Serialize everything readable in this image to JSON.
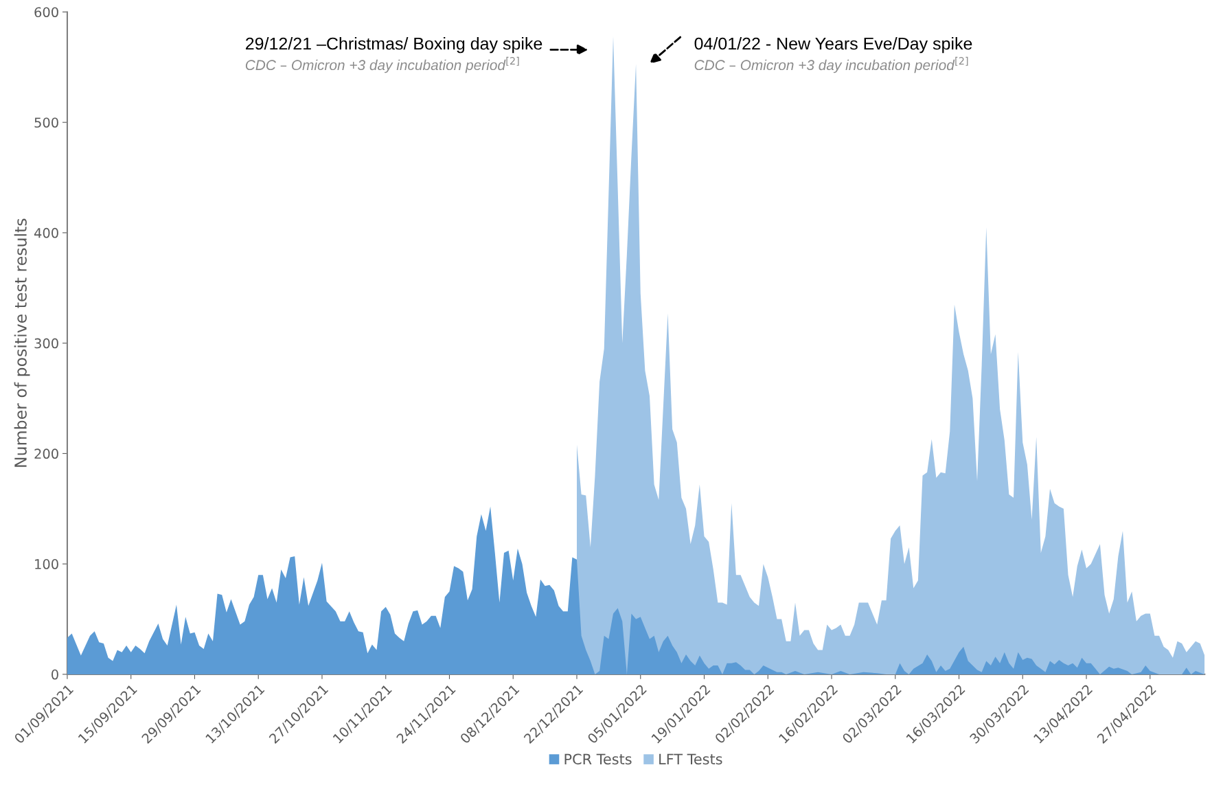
{
  "chart_data": {
    "type": "area",
    "ylabel": "Number of positive test results",
    "xlim": [
      "2021-09-01",
      "2022-05-09"
    ],
    "ylim": [
      0,
      600
    ],
    "yticks": [
      0,
      100,
      200,
      300,
      400,
      500,
      600
    ],
    "xticks": [
      {
        "value": "2021-09-01",
        "label": "01/09/2021"
      },
      {
        "value": "2021-09-15",
        "label": "15/09/2021"
      },
      {
        "value": "2021-09-29",
        "label": "29/09/2021"
      },
      {
        "value": "2021-10-13",
        "label": "13/10/2021"
      },
      {
        "value": "2021-10-27",
        "label": "27/10/2021"
      },
      {
        "value": "2021-11-10",
        "label": "10/11/2021"
      },
      {
        "value": "2021-11-24",
        "label": "24/11/2021"
      },
      {
        "value": "2021-12-08",
        "label": "08/12/2021"
      },
      {
        "value": "2021-12-22",
        "label": "22/12/2021"
      },
      {
        "value": "2022-01-05",
        "label": "05/01/2022"
      },
      {
        "value": "2022-01-19",
        "label": "19/01/2022"
      },
      {
        "value": "2022-02-02",
        "label": "02/02/2022"
      },
      {
        "value": "2022-02-16",
        "label": "16/02/2022"
      },
      {
        "value": "2022-03-02",
        "label": "02/03/2022"
      },
      {
        "value": "2022-03-16",
        "label": "16/03/2022"
      },
      {
        "value": "2022-03-30",
        "label": "30/03/2022"
      },
      {
        "value": "2022-04-13",
        "label": "13/04/2022"
      },
      {
        "value": "2022-04-27",
        "label": "27/04/2022"
      }
    ],
    "grid": false,
    "legend": "bottom",
    "annotations": [
      "29/12/21 –Christmas/ Boxing day spike",
      "CDC – Omicron +3 day incubation period$^{[2]}$",
      "04/01/22 - New Years Eve/Day spike",
      "CDC – Omicron +3 day incubation period$^{[2]}$"
    ],
    "series": [
      {
        "name": "PCR Tests",
        "color": "#5b9bd5",
        "x": [
          "2021-09-01",
          "2021-09-02",
          "2021-09-03",
          "2021-09-04",
          "2021-09-06",
          "2021-09-07",
          "2021-09-08",
          "2021-09-09",
          "2021-09-10",
          "2021-09-11",
          "2021-09-12",
          "2021-09-13",
          "2021-09-14",
          "2021-09-15",
          "2021-09-16",
          "2021-09-17",
          "2021-09-18",
          "2021-09-19",
          "2021-09-21",
          "2021-09-22",
          "2021-09-23",
          "2021-09-25",
          "2021-09-26",
          "2021-09-27",
          "2021-09-28",
          "2021-09-29",
          "2021-09-30",
          "2021-10-01",
          "2021-10-02",
          "2021-10-03",
          "2021-10-04",
          "2021-10-05",
          "2021-10-06",
          "2021-10-07",
          "2021-10-09",
          "2021-10-10",
          "2021-10-11",
          "2021-10-12",
          "2021-10-13",
          "2021-10-14",
          "2021-10-15",
          "2021-10-16",
          "2021-10-17",
          "2021-10-18",
          "2021-10-19",
          "2021-10-20",
          "2021-10-21",
          "2021-10-22",
          "2021-10-23",
          "2021-10-24",
          "2021-10-26",
          "2021-10-27",
          "2021-10-28",
          "2021-10-30",
          "2021-10-31",
          "2021-11-01",
          "2021-11-02",
          "2021-11-03",
          "2021-11-04",
          "2021-11-05",
          "2021-11-06",
          "2021-11-07",
          "2021-11-08",
          "2021-11-09",
          "2021-11-10",
          "2021-11-11",
          "2021-11-12",
          "2021-11-13",
          "2021-11-14",
          "2021-11-15",
          "2021-11-16",
          "2021-11-17",
          "2021-11-18",
          "2021-11-19",
          "2021-11-20",
          "2021-11-21",
          "2021-11-22",
          "2021-11-23",
          "2021-11-24",
          "2021-11-25",
          "2021-11-26",
          "2021-11-27",
          "2021-11-28",
          "2021-11-29",
          "2021-11-30",
          "2021-12-01",
          "2021-12-02",
          "2021-12-03",
          "2021-12-04",
          "2021-12-05",
          "2021-12-06",
          "2021-12-07",
          "2021-12-08",
          "2021-12-09",
          "2021-12-10",
          "2021-12-11",
          "2021-12-12",
          "2021-12-13",
          "2021-12-14",
          "2021-12-15",
          "2021-12-16",
          "2021-12-17",
          "2021-12-18",
          "2021-12-19",
          "2021-12-20",
          "2021-12-21",
          "2021-12-22",
          "2021-12-23",
          "2021-12-24",
          "2021-12-25",
          "2021-12-26",
          "2021-12-27",
          "2021-12-28",
          "2021-12-29",
          "2021-12-30",
          "2021-12-31",
          "2022-01-01",
          "2022-01-02",
          "2022-01-03",
          "2022-01-04",
          "2022-01-05",
          "2022-01-06",
          "2022-01-07",
          "2022-01-08",
          "2022-01-09",
          "2022-01-10",
          "2022-01-11",
          "2022-01-12",
          "2022-01-13",
          "2022-01-14",
          "2022-01-15",
          "2022-01-16",
          "2022-01-17",
          "2022-01-18",
          "2022-01-19",
          "2022-01-20",
          "2022-01-21",
          "2022-01-22",
          "2022-01-23",
          "2022-01-24",
          "2022-01-25",
          "2022-01-26",
          "2022-01-27",
          "2022-01-28",
          "2022-01-29",
          "2022-01-30",
          "2022-01-31",
          "2022-02-01",
          "2022-02-02",
          "2022-02-03",
          "2022-02-04",
          "2022-02-05",
          "2022-02-06",
          "2022-02-08",
          "2022-02-10",
          "2022-02-13",
          "2022-02-16",
          "2022-02-18",
          "2022-02-20",
          "2022-02-23",
          "2022-02-26",
          "2022-02-28",
          "2022-03-02",
          "2022-03-03",
          "2022-03-04",
          "2022-03-05",
          "2022-03-06",
          "2022-03-08",
          "2022-03-09",
          "2022-03-10",
          "2022-03-11",
          "2022-03-12",
          "2022-03-13",
          "2022-03-14",
          "2022-03-16",
          "2022-03-17",
          "2022-03-18",
          "2022-03-19",
          "2022-03-20",
          "2022-03-21",
          "2022-03-22",
          "2022-03-23",
          "2022-03-24",
          "2022-03-25",
          "2022-03-26",
          "2022-03-27",
          "2022-03-28",
          "2022-03-29",
          "2022-03-30",
          "2022-03-31",
          "2022-04-01",
          "2022-04-02",
          "2022-04-03",
          "2022-04-04",
          "2022-04-05",
          "2022-04-06",
          "2022-04-07",
          "2022-04-08",
          "2022-04-09",
          "2022-04-10",
          "2022-04-11",
          "2022-04-12",
          "2022-04-13",
          "2022-04-14",
          "2022-04-15",
          "2022-04-16",
          "2022-04-18",
          "2022-04-19",
          "2022-04-20",
          "2022-04-22",
          "2022-04-23",
          "2022-04-25",
          "2022-04-26",
          "2022-04-27",
          "2022-04-29",
          "2022-05-04",
          "2022-05-05",
          "2022-05-06",
          "2022-05-07",
          "2022-05-09"
        ],
        "values": [
          33,
          37,
          27,
          17,
          35,
          39,
          29,
          28,
          15,
          12,
          22,
          20,
          26,
          20,
          26,
          23,
          19,
          30,
          46,
          32,
          26,
          63,
          27,
          52,
          37,
          38,
          26,
          23,
          37,
          30,
          73,
          72,
          56,
          68,
          45,
          48,
          63,
          70,
          90,
          90,
          68,
          78,
          65,
          95,
          87,
          106,
          107,
          63,
          88,
          62,
          85,
          101,
          66,
          57,
          48,
          48,
          57,
          47,
          39,
          38,
          19,
          27,
          22,
          57,
          61,
          54,
          37,
          33,
          30,
          46,
          57,
          58,
          45,
          48,
          53,
          53,
          42,
          70,
          75,
          98,
          96,
          93,
          67,
          77,
          125,
          145,
          130,
          152,
          110,
          65,
          110,
          112,
          85,
          114,
          100,
          74,
          62,
          52,
          86,
          80,
          81,
          76,
          62,
          57,
          57,
          106,
          104,
          35,
          22,
          12,
          0,
          3,
          35,
          32,
          55,
          60,
          48,
          0,
          55,
          50,
          52,
          42,
          32,
          35,
          20,
          30,
          35,
          26,
          20,
          10,
          18,
          12,
          8,
          17,
          10,
          5,
          8,
          8,
          0,
          10,
          10,
          11,
          8,
          4,
          4,
          0,
          3,
          8,
          6,
          4,
          2,
          2,
          0,
          3,
          0,
          2,
          0,
          3,
          0,
          2,
          1,
          0,
          0,
          10,
          3,
          0,
          5,
          10,
          18,
          12,
          2,
          8,
          3,
          5,
          20,
          25,
          12,
          8,
          4,
          2,
          12,
          8,
          16,
          10,
          20,
          10,
          5,
          20,
          13,
          15,
          14,
          8,
          5,
          2,
          12,
          9,
          13,
          10,
          8,
          10,
          6,
          15,
          10,
          10,
          5,
          0,
          7,
          5,
          6,
          3,
          0,
          2,
          8,
          3,
          0,
          0,
          6,
          0,
          3,
          0
        ]
      },
      {
        "name": "LFT Tests",
        "color": "#9dc3e6",
        "x": [
          "2021-12-22",
          "2021-12-23",
          "2021-12-24",
          "2021-12-25",
          "2021-12-26",
          "2021-12-27",
          "2021-12-28",
          "2021-12-30",
          "2021-12-31",
          "2022-01-01",
          "2022-01-02",
          "2022-01-03",
          "2022-01-04",
          "2022-01-05",
          "2022-01-06",
          "2022-01-07",
          "2022-01-08",
          "2022-01-09",
          "2022-01-11",
          "2022-01-12",
          "2022-01-13",
          "2022-01-14",
          "2022-01-15",
          "2022-01-16",
          "2022-01-17",
          "2022-01-18",
          "2022-01-19",
          "2022-01-20",
          "2022-01-21",
          "2022-01-22",
          "2022-01-23",
          "2022-01-24",
          "2022-01-25",
          "2022-01-26",
          "2022-01-27",
          "2022-01-28",
          "2022-01-29",
          "2022-01-30",
          "2022-01-31",
          "2022-02-01",
          "2022-02-02",
          "2022-02-03",
          "2022-02-04",
          "2022-02-05",
          "2022-02-06",
          "2022-02-07",
          "2022-02-08",
          "2022-02-09",
          "2022-02-10",
          "2022-02-11",
          "2022-02-12",
          "2022-02-13",
          "2022-02-14",
          "2022-02-15",
          "2022-02-16",
          "2022-02-17",
          "2022-02-18",
          "2022-02-19",
          "2022-02-20",
          "2022-02-21",
          "2022-02-22",
          "2022-02-24",
          "2022-02-25",
          "2022-02-26",
          "2022-02-27",
          "2022-02-28",
          "2022-03-01",
          "2022-03-02",
          "2022-03-03",
          "2022-03-04",
          "2022-03-05",
          "2022-03-06",
          "2022-03-07",
          "2022-03-08",
          "2022-03-09",
          "2022-03-10",
          "2022-03-11",
          "2022-03-12",
          "2022-03-13",
          "2022-03-14",
          "2022-03-15",
          "2022-03-16",
          "2022-03-17",
          "2022-03-18",
          "2022-03-19",
          "2022-03-20",
          "2022-03-21",
          "2022-03-22",
          "2022-03-23",
          "2022-03-24",
          "2022-03-25",
          "2022-03-26",
          "2022-03-27",
          "2022-03-28",
          "2022-03-29",
          "2022-03-30",
          "2022-03-31",
          "2022-04-01",
          "2022-04-02",
          "2022-04-03",
          "2022-04-04",
          "2022-04-05",
          "2022-04-06",
          "2022-04-07",
          "2022-04-08",
          "2022-04-09",
          "2022-04-10",
          "2022-04-11",
          "2022-04-12",
          "2022-04-13",
          "2022-04-14",
          "2022-04-16",
          "2022-04-17",
          "2022-04-18",
          "2022-04-19",
          "2022-04-20",
          "2022-04-21",
          "2022-04-22",
          "2022-04-23",
          "2022-04-24",
          "2022-04-25",
          "2022-04-26",
          "2022-04-27",
          "2022-04-28",
          "2022-04-29",
          "2022-04-30",
          "2022-05-01",
          "2022-05-02",
          "2022-05-03",
          "2022-05-04",
          "2022-05-05",
          "2022-05-06",
          "2022-05-07",
          "2022-05-08",
          "2022-05-09"
        ],
        "values": [
          208,
          163,
          162,
          115,
          180,
          265,
          295,
          578,
          440,
          300,
          380,
          470,
          553,
          345,
          275,
          252,
          172,
          158,
          327,
          222,
          210,
          160,
          150,
          118,
          135,
          172,
          125,
          120,
          95,
          65,
          65,
          63,
          155,
          90,
          90,
          80,
          70,
          65,
          62,
          100,
          88,
          70,
          50,
          50,
          30,
          30,
          65,
          35,
          40,
          40,
          28,
          22,
          22,
          45,
          40,
          42,
          45,
          35,
          35,
          45,
          65,
          65,
          55,
          45,
          67,
          67,
          123,
          130,
          135,
          100,
          115,
          78,
          85,
          180,
          183,
          213,
          178,
          183,
          182,
          220,
          335,
          310,
          290,
          275,
          250,
          175,
          280,
          405,
          290,
          308,
          240,
          212,
          163,
          160,
          292,
          210,
          190,
          140,
          215,
          110,
          125,
          168,
          155,
          152,
          150,
          90,
          70,
          98,
          113,
          96,
          100,
          118,
          72,
          55,
          68,
          107,
          130,
          65,
          75,
          48,
          53,
          55,
          55,
          35,
          35,
          25,
          22,
          15,
          30,
          28,
          20,
          25,
          30,
          28,
          17
        ]
      }
    ]
  }
}
